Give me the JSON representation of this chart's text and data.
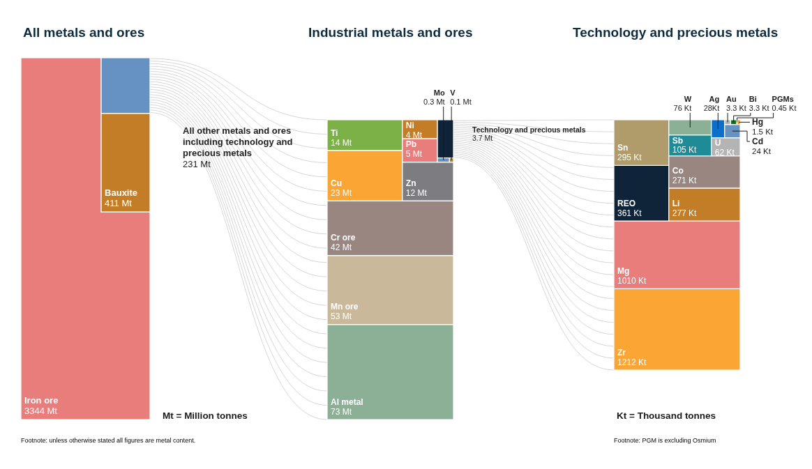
{
  "chart_data": [
    {
      "type": "other",
      "title": "All metals and ores",
      "categories": [
        "Iron ore",
        "Bauxite",
        "All other metals and ores including technology and precious metals"
      ],
      "values": [
        3344,
        411,
        231
      ],
      "value_labels": [
        "3344 Mt",
        "411 Mt",
        "231 Mt"
      ],
      "colors": [
        "#e97d7c",
        "#c47d27",
        "#6592c1"
      ],
      "annotations": [
        "Mt = Million tonnes",
        "Footnote: unless otherwise stated all figures are metal content."
      ]
    },
    {
      "type": "other",
      "title": "Industrial metals and ores",
      "categories": [
        "Al metal",
        "Mn ore",
        "Cr ore",
        "Cu",
        "Ti",
        "Zn",
        "Pb",
        "Ni",
        "Technology and precious metals",
        "Mo",
        "V"
      ],
      "values": [
        73,
        53,
        42,
        23,
        14,
        12,
        5,
        4,
        3.7,
        0.3,
        0.1
      ],
      "value_labels": [
        "73 Mt",
        "53 Mt",
        "42 Mt",
        "23 Mt",
        "14 Mt",
        "12 Mt",
        "5 Mt",
        "4 Mt",
        "3.7 Mt",
        "0.3 Mt",
        "0.1 Mt"
      ],
      "colors": [
        "#8cb095",
        "#c9b99a",
        "#9a8681",
        "#fba634",
        "#7bb146",
        "#7c7c81",
        "#e97d7c",
        "#c47d27",
        "#0f2339",
        "#6592c1",
        "#c47d27"
      ]
    },
    {
      "type": "other",
      "title": "Technology and precious metals",
      "categories": [
        "Zr",
        "Mg",
        "REO",
        "Sn",
        "Li",
        "Co",
        "Sb",
        "W",
        "U",
        "Ag",
        "Cd",
        "Au",
        "Bi",
        "PGMs",
        "Hg"
      ],
      "values": [
        1212,
        1010,
        361,
        295,
        277,
        271,
        105,
        76,
        62,
        28,
        24,
        3.3,
        3.3,
        0.45,
        1.5
      ],
      "value_labels": [
        "1212 Kt",
        "1010 Kt",
        "361 Kt",
        "295 Kt",
        "277 Kt",
        "271 Kt",
        "105 Kt",
        "76 Kt",
        "62 Kt",
        "28Kt",
        "24 Kt",
        "3.3 Kt",
        "3.3 Kt",
        "0.45 Kt",
        "1.5 Kt"
      ],
      "colors": [
        "#fba634",
        "#e97d7c",
        "#0f2339",
        "#b09c6a",
        "#c47d27",
        "#9a8681",
        "#1f8b97",
        "#8cb095",
        "#b4b4b4",
        "#0b6fcb",
        "#6592c1",
        "#b4b4b4",
        "#12711c",
        "#f5c16c",
        "#f29a2e"
      ],
      "annotations": [
        "Kt = Thousand tonnes",
        "Footnote: PGM is excluding Osmium"
      ]
    }
  ]
}
